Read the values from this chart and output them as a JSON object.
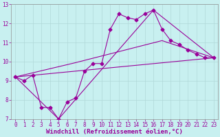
{
  "xlabel": "Windchill (Refroidissement éolien,°C)",
  "background_color": "#c8f0f0",
  "grid_color": "#b0d8d8",
  "line_color": "#990099",
  "xlim": [
    -0.5,
    23.5
  ],
  "ylim": [
    7,
    13
  ],
  "xticks": [
    0,
    1,
    2,
    3,
    4,
    5,
    6,
    7,
    8,
    9,
    10,
    11,
    12,
    13,
    14,
    15,
    16,
    17,
    18,
    19,
    20,
    21,
    22,
    23
  ],
  "yticks": [
    7,
    8,
    9,
    10,
    11,
    12,
    13
  ],
  "line1_x": [
    0,
    1,
    2,
    3,
    4,
    5,
    6,
    7,
    8,
    9,
    10,
    11,
    12,
    13,
    14,
    15,
    16,
    17,
    18,
    19,
    20,
    21,
    22,
    23
  ],
  "line1_y": [
    9.2,
    9.0,
    9.3,
    7.6,
    7.6,
    7.0,
    7.9,
    8.1,
    9.5,
    9.9,
    9.9,
    11.7,
    12.5,
    12.3,
    12.2,
    12.5,
    12.7,
    11.7,
    11.1,
    10.9,
    10.6,
    10.4,
    10.2,
    10.2
  ],
  "line2_x": [
    0,
    23
  ],
  "line2_y": [
    9.2,
    10.2
  ],
  "line3_x": [
    0,
    5,
    16,
    23
  ],
  "line3_y": [
    9.2,
    7.0,
    12.7,
    10.2
  ],
  "line4_x": [
    0,
    7,
    17,
    23
  ],
  "line4_y": [
    9.2,
    9.95,
    11.1,
    10.2
  ],
  "marker_size": 2.5,
  "linewidth": 0.8,
  "tick_fontsize": 5.5,
  "xlabel_fontsize": 6.5
}
